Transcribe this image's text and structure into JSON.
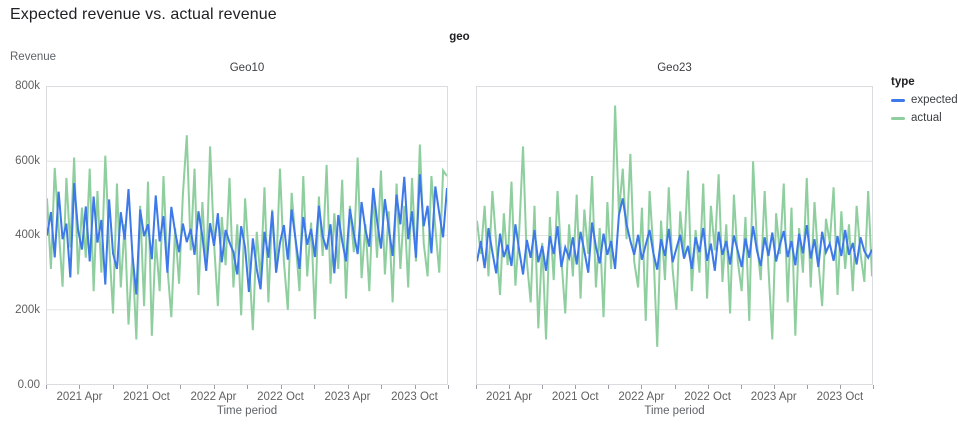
{
  "chart_data": {
    "type": "line",
    "title": "Expected revenue vs. actual revenue",
    "facet_field": "geo",
    "xlabel": "Time period",
    "ylabel": "Revenue",
    "y_max_k": 800,
    "grid_k": [
      200,
      400,
      600
    ],
    "yticks": [
      "800k",
      "600k",
      "400k",
      "200k",
      "0.00"
    ],
    "xticks": [
      "2021 Apr",
      "2021 Oct",
      "2022 Apr",
      "2022 Oct",
      "2023 Apr",
      "2023 Oct"
    ],
    "x_range_months": [
      "2021 Jan",
      "2023 Dec"
    ],
    "units": "revenue in thousands (k)",
    "legend": {
      "title": "type",
      "entries": [
        {
          "label": "expected",
          "color": "#3d79e8"
        },
        {
          "label": "actual",
          "color": "#8fcf9f"
        }
      ]
    },
    "facets": [
      {
        "label": "Geo10",
        "series": [
          {
            "name": "expected",
            "values_k": [
              400,
              463,
              341,
              518,
              390,
              432,
              287,
              541,
              415,
              362,
              478,
              330,
              505,
              381,
              442,
              268,
              497,
              352,
              310,
              463,
              389,
              525,
              348,
              241,
              470,
              398,
              430,
              336,
              508,
              384,
              452,
              300,
              477,
              410,
              355,
              432,
              382,
              418,
              348,
              465,
              398,
              305,
              433,
              372,
              460,
              328,
              415,
              381,
              355,
              295,
              425,
              368,
              248,
              392,
              310,
              255,
              410,
              340,
              465,
              300,
              380,
              428,
              335,
              470,
              390,
              310,
              450,
              375,
              418,
              342,
              480,
              398,
              362,
              430,
              298,
              455,
              385,
              330,
              472,
              405,
              350,
              490,
              415,
              370,
              528,
              440,
              365,
              498,
              420,
              345,
              510,
              430,
              558,
              390,
              465,
              340,
              565,
              425,
              480,
              352,
              532,
              460,
              395,
              528
            ]
          },
          {
            "name": "actual",
            "values_k": [
              500,
              310,
              582,
              420,
              262,
              555,
              368,
              610,
              295,
              475,
              340,
              580,
              250,
              520,
              300,
              615,
              380,
              190,
              540,
              260,
              430,
              160,
              350,
              120,
              480,
              210,
              545,
              130,
              390,
              250,
              560,
              315,
              180,
              420,
              270,
              510,
              670,
              360,
              580,
              240,
              490,
              305,
              640,
              380,
              210,
              450,
              320,
              555,
              260,
              430,
              185,
              500,
              340,
              145,
              410,
              280,
              530,
              220,
              470,
              300,
              580,
              330,
              200,
              515,
              385,
              250,
              560,
              290,
              435,
              175,
              505,
              345,
              590,
              270,
              460,
              310,
              550,
              230,
              480,
              355,
              610,
              285,
              430,
              250,
              520,
              340,
              575,
              295,
              465,
              220,
              540,
              310,
              480,
              260,
              555,
              330,
              645,
              380,
              290,
              560,
              420,
              300,
              575,
              560
            ]
          }
        ]
      },
      {
        "label": "Geo23",
        "series": [
          {
            "name": "expected",
            "values_k": [
              330,
              385,
              312,
              420,
              355,
              298,
              405,
              342,
              375,
              318,
              430,
              360,
              295,
              388,
              340,
              415,
              328,
              372,
              305,
              398,
              350,
              425,
              315,
              368,
              340,
              395,
              322,
              410,
              358,
              300,
              435,
              370,
              325,
              405,
              348,
              385,
              310,
              455,
              500,
              430,
              385,
              348,
              402,
              335,
              375,
              415,
              352,
              308,
              390,
              345,
              418,
              328,
              365,
              402,
              338,
              372,
              310,
              395,
              355,
              420,
              332,
              378,
              305,
              410,
              348,
              385,
              322,
              400,
              358,
              315,
              392,
              340,
              425,
              360,
              318,
              395,
              345,
              408,
              330,
              375,
              412,
              342,
              385,
              320,
              405,
              352,
              428,
              338,
              390,
              315,
              410,
              355,
              378,
              332,
              398,
              345,
              415,
              348,
              380,
              322,
              395,
              358,
              340,
              362
            ]
          },
          {
            "name": "actual",
            "values_k": [
              440,
              350,
              480,
              290,
              520,
              380,
              240,
              460,
              320,
              545,
              265,
              410,
              640,
              330,
              220,
              480,
              150,
              380,
              120,
              450,
              280,
              520,
              340,
              190,
              430,
              290,
              510,
              230,
              470,
              350,
              560,
              260,
              420,
              180,
              490,
              310,
              750,
              460,
              580,
              390,
              620,
              330,
              260,
              475,
              170,
              520,
              360,
              100,
              440,
              280,
              530,
              310,
              200,
              465,
              345,
              575,
              250,
              415,
              300,
              540,
              230,
              480,
              360,
              565,
              275,
              430,
              190,
              510,
              330,
              250,
              450,
              170,
              600,
              380,
              280,
              520,
              310,
              120,
              460,
              350,
              540,
              220,
              475,
              130,
              420,
              300,
              555,
              260,
              490,
              330,
              210,
              445,
              380,
              530,
              240,
              465,
              310,
              430,
              250,
              480,
              350,
              275,
              520,
              290
            ]
          }
        ]
      }
    ]
  }
}
